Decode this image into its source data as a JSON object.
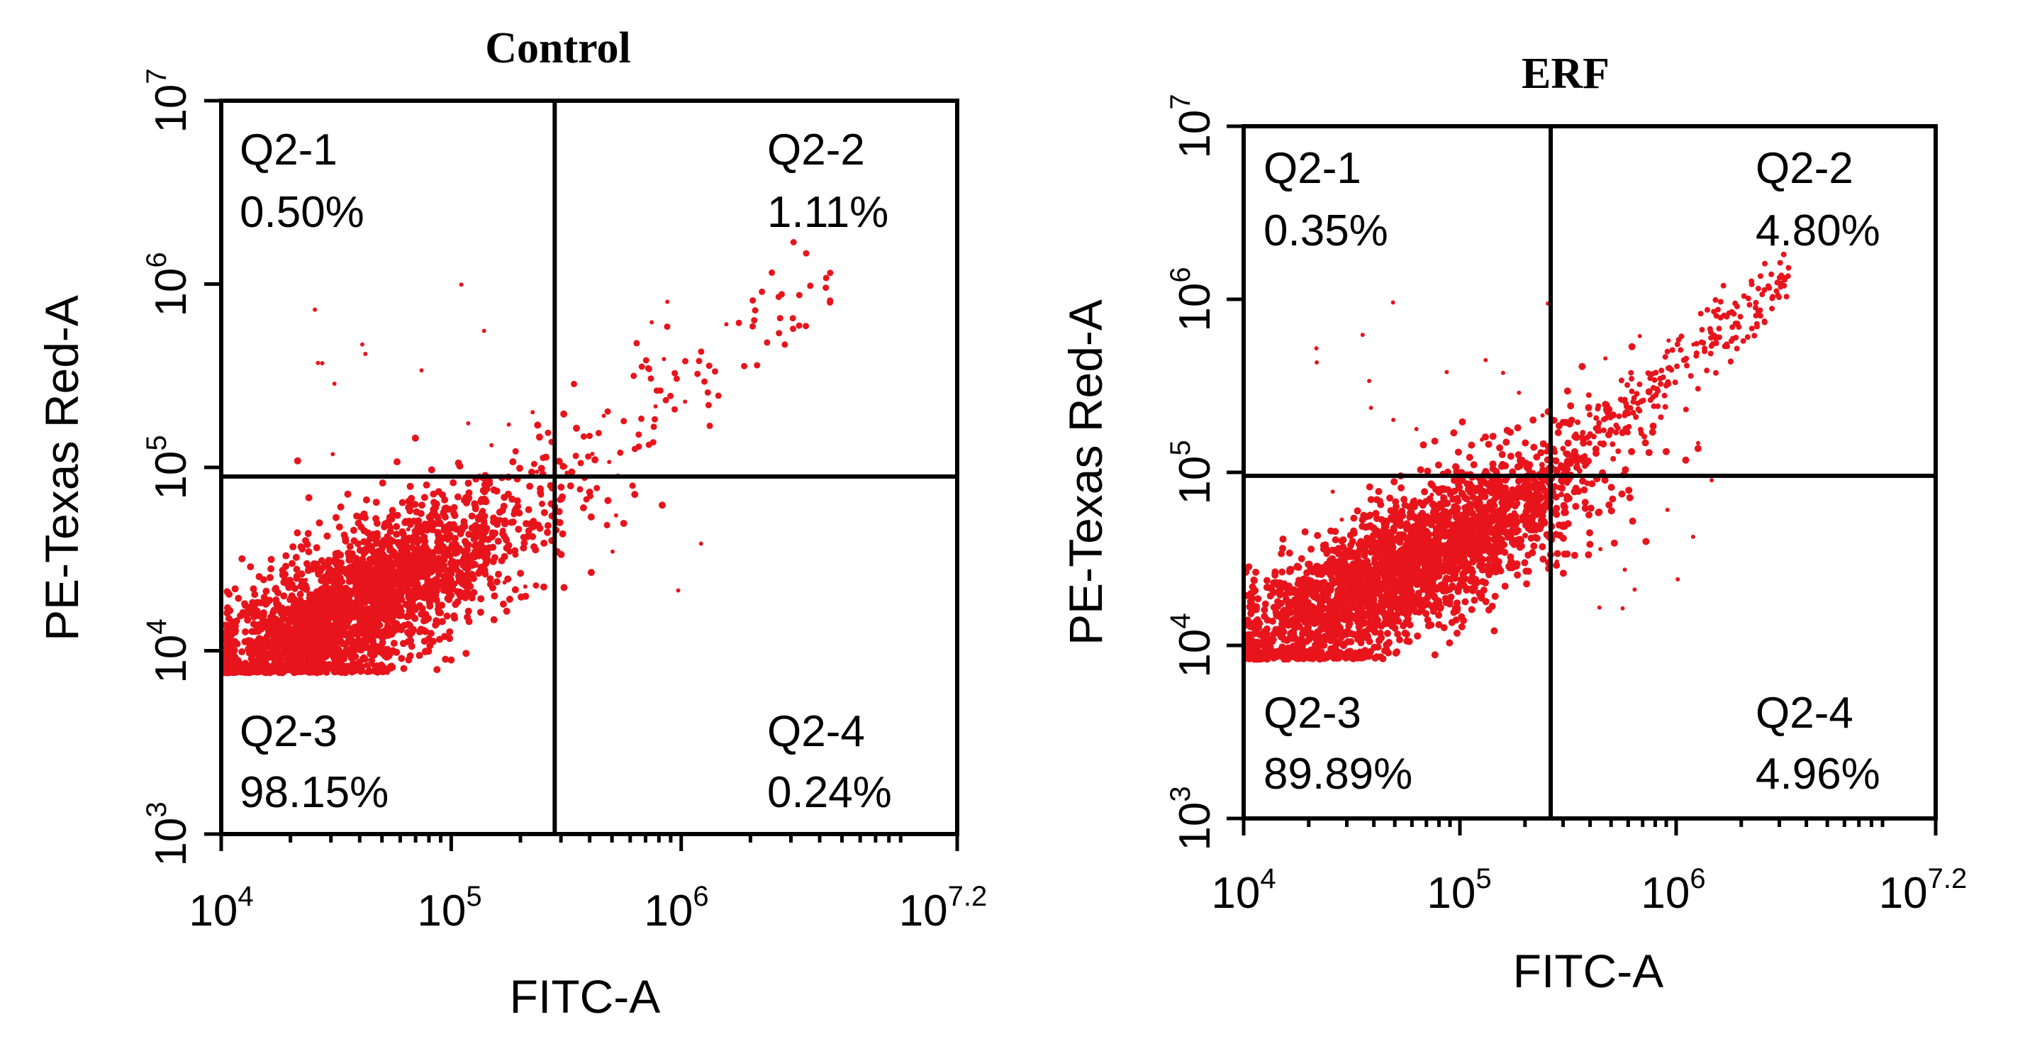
{
  "chart_data": [
    {
      "type": "scatter",
      "title": "Control",
      "xlabel": "FITC-A",
      "ylabel": "PE-Texas Red-A",
      "x_scale": "log10",
      "y_scale": "log10",
      "xlim_log10": [
        4,
        7.2
      ],
      "ylim_log10": [
        3,
        7
      ],
      "x_ticks": [
        {
          "base": "10",
          "exp": "4"
        },
        {
          "base": "10",
          "exp": "5"
        },
        {
          "base": "10",
          "exp": "6"
        },
        {
          "base": "10",
          "exp": "7.2"
        }
      ],
      "y_ticks": [
        {
          "base": "10",
          "exp": "3"
        },
        {
          "base": "10",
          "exp": "4"
        },
        {
          "base": "10",
          "exp": "5"
        },
        {
          "base": "10",
          "exp": "6"
        },
        {
          "base": "10",
          "exp": "7"
        }
      ],
      "gate_log10": {
        "x": 5.45,
        "y": 4.95
      },
      "quadrants": [
        {
          "name": "Q2-1",
          "percent": "0.50%",
          "position": "top-left"
        },
        {
          "name": "Q2-2",
          "percent": "1.11%",
          "position": "top-right"
        },
        {
          "name": "Q2-3",
          "percent": "98.15%",
          "position": "bottom-left"
        },
        {
          "name": "Q2-4",
          "percent": "0.24%",
          "position": "bottom-right"
        }
      ],
      "population": {
        "main_center_log10": [
          4.55,
          4.22
        ],
        "main_spread_log10": [
          0.38,
          0.2
        ],
        "diagonal_tail": true,
        "dot_color": "#e8141c"
      }
    },
    {
      "type": "scatter",
      "title": "ERF",
      "xlabel": "FITC-A",
      "ylabel": "PE-Texas Red-A",
      "x_scale": "log10",
      "y_scale": "log10",
      "xlim_log10": [
        4,
        7.2
      ],
      "ylim_log10": [
        3,
        7
      ],
      "x_ticks": [
        {
          "base": "10",
          "exp": "4"
        },
        {
          "base": "10",
          "exp": "5"
        },
        {
          "base": "10",
          "exp": "6"
        },
        {
          "base": "10",
          "exp": "7.2"
        }
      ],
      "y_ticks": [
        {
          "base": "10",
          "exp": "3"
        },
        {
          "base": "10",
          "exp": "4"
        },
        {
          "base": "10",
          "exp": "5"
        },
        {
          "base": "10",
          "exp": "6"
        },
        {
          "base": "10",
          "exp": "7"
        }
      ],
      "gate_log10": {
        "x": 5.42,
        "y": 4.98
      },
      "quadrants": [
        {
          "name": "Q2-1",
          "percent": "0.35%",
          "position": "top-left"
        },
        {
          "name": "Q2-2",
          "percent": "4.80%",
          "position": "top-right"
        },
        {
          "name": "Q2-3",
          "percent": "89.89%",
          "position": "bottom-left"
        },
        {
          "name": "Q2-4",
          "percent": "4.96%",
          "position": "bottom-right"
        }
      ],
      "population": {
        "main_center_log10": [
          4.75,
          4.45
        ],
        "main_spread_log10": [
          0.42,
          0.2
        ],
        "diagonal_tail": true,
        "dot_color": "#e8141c"
      }
    }
  ]
}
